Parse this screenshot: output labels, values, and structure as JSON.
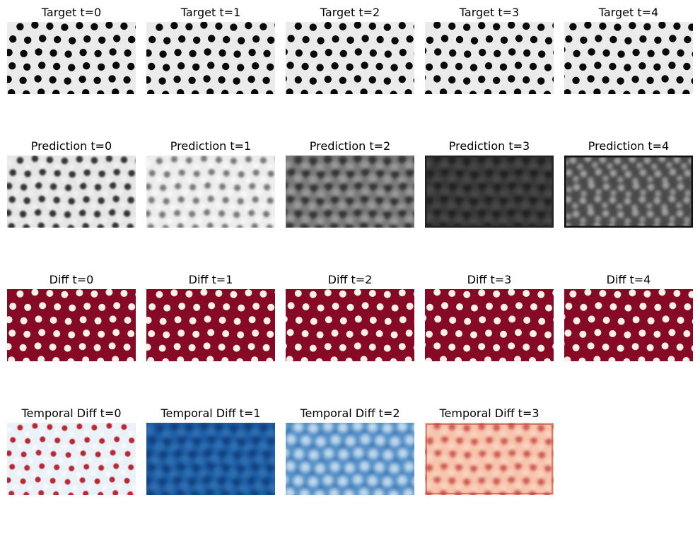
{
  "grid": {
    "rows": [
      {
        "key": "target",
        "panels": [
          {
            "title": "Target t=0"
          },
          {
            "title": "Target t=1"
          },
          {
            "title": "Target t=2"
          },
          {
            "title": "Target t=3"
          },
          {
            "title": "Target t=4"
          }
        ]
      },
      {
        "key": "prediction",
        "panels": [
          {
            "title": "Prediction t=0"
          },
          {
            "title": "Prediction t=1"
          },
          {
            "title": "Prediction t=2"
          },
          {
            "title": "Prediction t=3"
          },
          {
            "title": "Prediction t=4"
          }
        ]
      },
      {
        "key": "diff",
        "panels": [
          {
            "title": "Diff t=0"
          },
          {
            "title": "Diff t=1"
          },
          {
            "title": "Diff t=2"
          },
          {
            "title": "Diff t=3"
          },
          {
            "title": "Diff t=4"
          }
        ]
      },
      {
        "key": "temporal",
        "panels": [
          {
            "title": "Temporal Diff t=0"
          },
          {
            "title": "Temporal Diff t=1"
          },
          {
            "title": "Temporal Diff t=2"
          },
          {
            "title": "Temporal Diff t=3"
          }
        ]
      }
    ]
  },
  "colors": {
    "target_bg": "#ebebeb",
    "target_dot": "#0a0a0a",
    "diff_bg": "#860a26",
    "diff_dot": "#fbf0e6",
    "temporal0_bg": "#eaf2f8",
    "temporal0_dot": "#b52026",
    "temporal1_bg": "#1d5fa8",
    "temporal1_dot": "#0b3d7a",
    "temporal2_bg": "#4f8fc8",
    "temporal2_dot": "#d4e5f2",
    "temporal3_bg": "#f7c4ac",
    "temporal3_dot": "#c0302e"
  }
}
